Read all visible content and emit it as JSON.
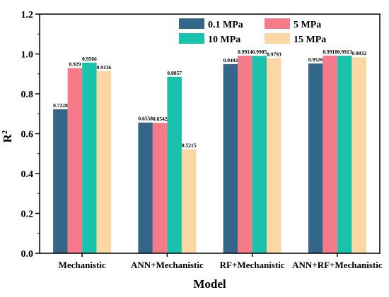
{
  "chart_data": {
    "type": "bar",
    "categories": [
      "Mechanistic",
      "ANN+Mechanistic",
      "RF+Mechanistic",
      "ANN+RF+Mechanistic"
    ],
    "series": [
      {
        "name": "0.1 MPa",
        "color": "#336688",
        "values": [
          0.7228,
          0.6558,
          0.9492,
          0.9526
        ],
        "labels": [
          "0.7228",
          "0.6558",
          "0.9492",
          "0.9526"
        ]
      },
      {
        "name": "5 MPa",
        "color": "#f57a8a",
        "values": [
          0.929,
          0.6542,
          0.9914,
          0.9918
        ],
        "labels": [
          "0.929",
          "0.6542",
          "0.9914",
          "0.9918"
        ]
      },
      {
        "name": "10 MPa",
        "color": "#18c2ab",
        "values": [
          0.9566,
          0.8857,
          0.9905,
          0.9913
        ],
        "labels": [
          "0.9566",
          "0.8857",
          "0.9905",
          "0.9913"
        ]
      },
      {
        "name": "15 MPa",
        "color": "#fdd7a3",
        "values": [
          0.9136,
          0.5215,
          0.9793,
          0.9832
        ],
        "labels": [
          "0.9136",
          "0.5215",
          "0.9793",
          "0.9832"
        ]
      }
    ],
    "xlabel": "Model",
    "ylabel": "R",
    "ylabel_sup": "2",
    "ylim": [
      0.0,
      1.2
    ],
    "yticks": [
      "0.0",
      "0.2",
      "0.4",
      "0.6",
      "0.8",
      "1.0",
      "1.2"
    ],
    "ytick_values": [
      0.0,
      0.2,
      0.4,
      0.6,
      0.8,
      1.0,
      1.2
    ],
    "legend_position": "top-right",
    "grid": false
  }
}
